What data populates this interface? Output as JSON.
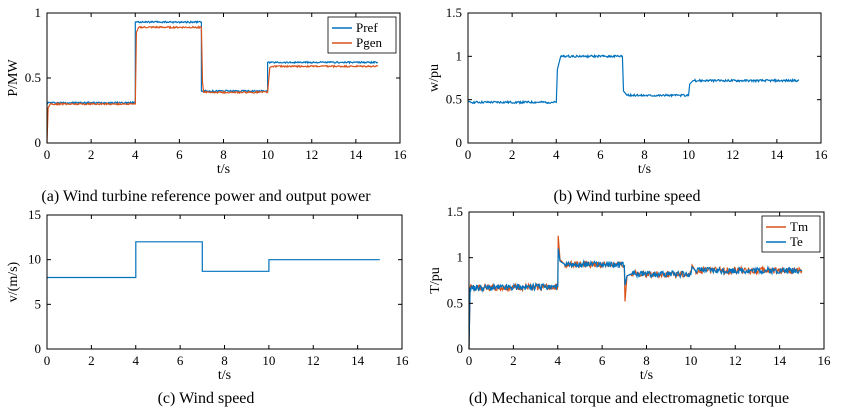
{
  "colors": {
    "blue": "#0072BD",
    "orange": "#D95319"
  },
  "chart_data": [
    {
      "type": "line",
      "caption": "(a) Wind turbine reference power and output power",
      "xlabel": "t/s",
      "ylabel": "P/MW",
      "xlim": [
        0,
        16
      ],
      "ylim": [
        0,
        1
      ],
      "xticks": [
        "0",
        "2",
        "4",
        "6",
        "8",
        "10",
        "12",
        "14",
        "16"
      ],
      "yticks": [
        "0",
        "0.5",
        "1"
      ],
      "grid": false,
      "legend": "top-right",
      "series": [
        {
          "name": "Pref",
          "color": "blue",
          "x": [
            0,
            4,
            4,
            7,
            7,
            10,
            10,
            15
          ],
          "y": [
            0.31,
            0.31,
            0.93,
            0.93,
            0.4,
            0.4,
            0.62,
            0.62
          ]
        },
        {
          "name": "Pgen",
          "color": "orange",
          "x": [
            0,
            0.05,
            0.15,
            4,
            4.05,
            4.15,
            7,
            7.05,
            7.1,
            10,
            10.1,
            10.2,
            15
          ],
          "y": [
            0,
            0.27,
            0.3,
            0.3,
            0.85,
            0.89,
            0.89,
            0.47,
            0.39,
            0.39,
            0.58,
            0.59,
            0.59
          ]
        }
      ]
    },
    {
      "type": "line",
      "caption": "(b) Wind turbine speed",
      "xlabel": "t/s",
      "ylabel": "w/pu",
      "xlim": [
        0,
        16
      ],
      "ylim": [
        0,
        1.5
      ],
      "xticks": [
        "0",
        "2",
        "4",
        "6",
        "8",
        "10",
        "12",
        "14",
        "16"
      ],
      "yticks": [
        "0",
        "0.5",
        "1",
        "1.5"
      ],
      "grid": false,
      "series": [
        {
          "color": "blue",
          "x": [
            0,
            4,
            4.05,
            4.2,
            7,
            7.05,
            7.2,
            10,
            10.05,
            10.2,
            15
          ],
          "y": [
            0.47,
            0.47,
            0.85,
            1.0,
            1.0,
            0.6,
            0.55,
            0.55,
            0.68,
            0.72,
            0.72
          ]
        }
      ]
    },
    {
      "type": "line",
      "caption": "(c) Wind speed",
      "xlabel": "t/s",
      "ylabel": "v/(m/s)",
      "xlim": [
        0,
        16
      ],
      "ylim": [
        0,
        15
      ],
      "xticks": [
        "0",
        "2",
        "4",
        "6",
        "8",
        "10",
        "12",
        "14",
        "16"
      ],
      "yticks": [
        "0",
        "5",
        "10",
        "15"
      ],
      "grid": false,
      "series": [
        {
          "color": "blue",
          "x": [
            0,
            4,
            4,
            7,
            7,
            10,
            10,
            15
          ],
          "y": [
            8,
            8,
            12,
            12,
            8.7,
            8.7,
            10,
            10
          ]
        }
      ]
    },
    {
      "type": "line",
      "caption": "(d) Mechanical torque and electromagnetic torque",
      "xlabel": "t/s",
      "ylabel": "T/pu",
      "xlim": [
        0,
        16
      ],
      "ylim": [
        0,
        1.5
      ],
      "xticks": [
        "0",
        "2",
        "4",
        "6",
        "8",
        "10",
        "12",
        "14",
        "16"
      ],
      "yticks": [
        "0",
        "0.5",
        "1",
        "1.5"
      ],
      "grid": false,
      "legend": "top-right",
      "series": [
        {
          "name": "Tm",
          "color": "orange",
          "x": [
            0,
            0.05,
            4,
            4.02,
            4.1,
            4.3,
            7,
            7.03,
            7.12,
            7.3,
            10,
            10.05,
            10.2,
            15
          ],
          "y": [
            0,
            0.67,
            0.68,
            1.24,
            0.98,
            0.93,
            0.92,
            0.52,
            0.8,
            0.82,
            0.82,
            0.92,
            0.86,
            0.86
          ]
        },
        {
          "name": "Te",
          "color": "blue",
          "x": [
            0,
            0.05,
            4,
            4.02,
            4.1,
            4.3,
            7,
            7.03,
            7.12,
            7.3,
            10,
            10.05,
            10.2,
            15
          ],
          "y": [
            0,
            0.67,
            0.68,
            1.1,
            0.96,
            0.93,
            0.92,
            0.7,
            0.8,
            0.82,
            0.82,
            0.9,
            0.86,
            0.86
          ]
        }
      ]
    }
  ]
}
